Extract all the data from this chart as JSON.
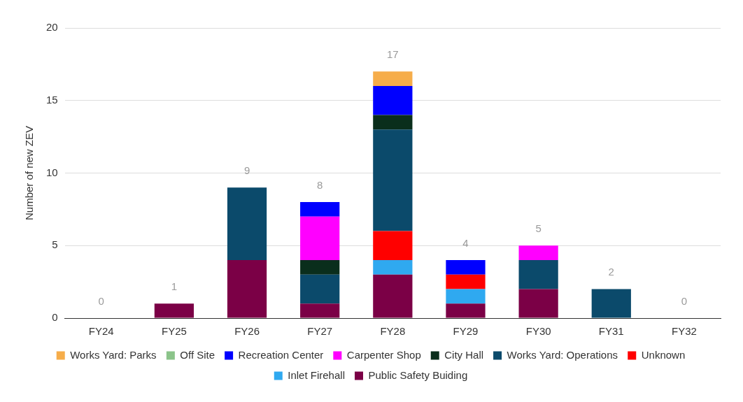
{
  "chart_data": {
    "type": "bar",
    "stacked": true,
    "ylabel": "Number of new ZEV",
    "categories": [
      "FY24",
      "FY25",
      "FY26",
      "FY27",
      "FY28",
      "FY29",
      "FY30",
      "FY31",
      "FY32"
    ],
    "series": [
      {
        "name": "Public Safety Buiding",
        "color": "#7b0046",
        "values": [
          0,
          1,
          4,
          1,
          3,
          1,
          2,
          0,
          0
        ]
      },
      {
        "name": "Inlet Firehall",
        "color": "#2fa9f0",
        "values": [
          0,
          0,
          0,
          0,
          1,
          1,
          0,
          0,
          0
        ]
      },
      {
        "name": "Unknown",
        "color": "#ff0000",
        "values": [
          0,
          0,
          0,
          0,
          2,
          1,
          0,
          0,
          0
        ]
      },
      {
        "name": "Works Yard: Operations",
        "color": "#0b4a6b",
        "values": [
          0,
          0,
          5,
          2,
          7,
          0,
          2,
          2,
          0
        ]
      },
      {
        "name": "City Hall",
        "color": "#0a2e1c",
        "values": [
          0,
          0,
          0,
          1,
          1,
          0,
          0,
          0,
          0
        ]
      },
      {
        "name": "Carpenter Shop",
        "color": "#ff00ff",
        "values": [
          0,
          0,
          0,
          3,
          0,
          0,
          1,
          0,
          0
        ]
      },
      {
        "name": "Recreation Center",
        "color": "#0000ff",
        "values": [
          0,
          0,
          0,
          1,
          2,
          1,
          0,
          0,
          0
        ]
      },
      {
        "name": "Off Site",
        "color": "#8bc48a",
        "values": [
          0,
          0,
          0,
          0,
          0,
          0,
          0,
          0,
          0
        ]
      },
      {
        "name": "Works Yard: Parks",
        "color": "#f6ad4a",
        "values": [
          0,
          0,
          0,
          0,
          1,
          0,
          0,
          0,
          0
        ]
      }
    ],
    "totals": [
      "0",
      "1",
      "9",
      "8",
      "17",
      "4",
      "5",
      "2",
      "0"
    ],
    "ylim": [
      0,
      20
    ],
    "yticks": [
      0,
      5,
      10,
      15,
      20
    ],
    "grid": "y",
    "legend": "bottom"
  }
}
